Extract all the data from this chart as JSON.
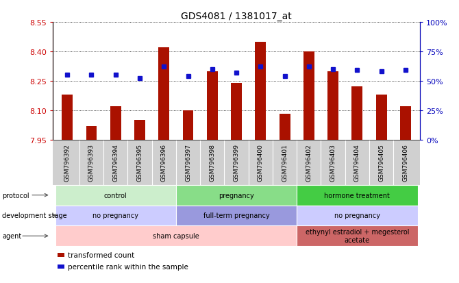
{
  "title": "GDS4081 / 1381017_at",
  "samples": [
    "GSM796392",
    "GSM796393",
    "GSM796394",
    "GSM796395",
    "GSM796396",
    "GSM796397",
    "GSM796398",
    "GSM796399",
    "GSM796400",
    "GSM796401",
    "GSM796402",
    "GSM796403",
    "GSM796404",
    "GSM796405",
    "GSM796406"
  ],
  "bar_values": [
    8.18,
    8.02,
    8.12,
    8.05,
    8.42,
    8.1,
    8.3,
    8.24,
    8.45,
    8.08,
    8.4,
    8.3,
    8.22,
    8.18,
    8.12
  ],
  "dot_values_pct": [
    55,
    55,
    55,
    52,
    62,
    54,
    60,
    57,
    62,
    54,
    62,
    60,
    59,
    58,
    59
  ],
  "ylim_left": [
    7.95,
    8.55
  ],
  "ylim_right": [
    0,
    100
  ],
  "yticks_left": [
    7.95,
    8.1,
    8.25,
    8.4,
    8.55
  ],
  "yticks_right": [
    0,
    25,
    50,
    75,
    100
  ],
  "bar_color": "#aa1100",
  "dot_color": "#1111cc",
  "bar_base": 7.95,
  "protocol_groups": [
    {
      "label": "control",
      "start": 0,
      "end": 5,
      "color": "#cceecc"
    },
    {
      "label": "pregnancy",
      "start": 5,
      "end": 10,
      "color": "#88dd88"
    },
    {
      "label": "hormone treatment",
      "start": 10,
      "end": 15,
      "color": "#44cc44"
    }
  ],
  "dev_stage_groups": [
    {
      "label": "no pregnancy",
      "start": 0,
      "end": 5,
      "color": "#ccccff"
    },
    {
      "label": "full-term pregnancy",
      "start": 5,
      "end": 10,
      "color": "#9999dd"
    },
    {
      "label": "no pregnancy",
      "start": 10,
      "end": 15,
      "color": "#ccccff"
    }
  ],
  "agent_groups": [
    {
      "label": "sham capsule",
      "start": 0,
      "end": 10,
      "color": "#ffcccc"
    },
    {
      "label": "ethynyl estradiol + megesterol\nacetate",
      "start": 10,
      "end": 15,
      "color": "#cc6666"
    }
  ],
  "row_labels": [
    "protocol",
    "development stage",
    "agent"
  ],
  "legend_bar_label": "transformed count",
  "legend_dot_label": "percentile rank within the sample",
  "tick_color_left": "#cc0000",
  "tick_color_right": "#0000bb",
  "xtick_bg": "#d0d0d0"
}
